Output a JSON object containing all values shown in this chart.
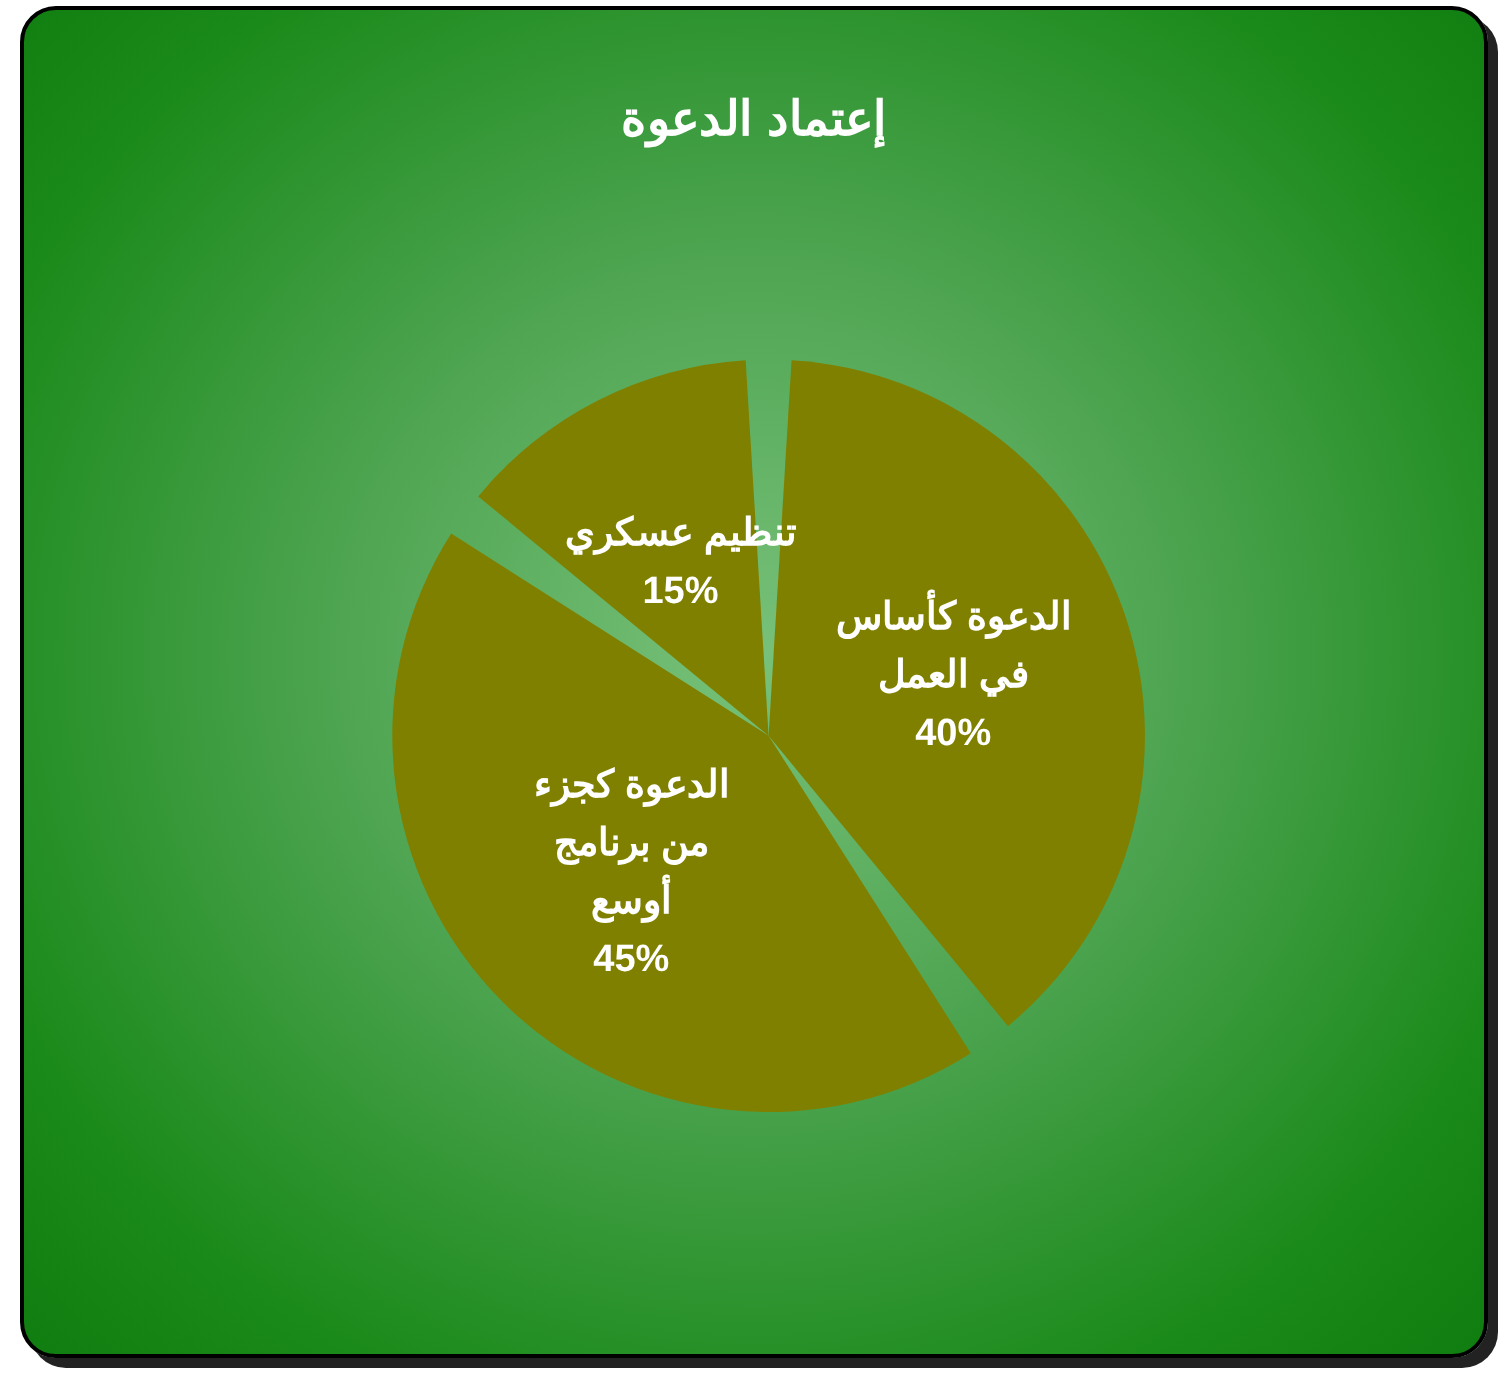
{
  "chart_data": {
    "type": "pie",
    "title": "إعتماد الدعوة",
    "categories": [
      "الدعوة كأساس في العمل",
      "الدعوة كجزء من برنامج أوسع",
      "تنظيم عسكري"
    ],
    "values": [
      40,
      45,
      15
    ],
    "value_labels": [
      "40%",
      "45%",
      "15%"
    ],
    "colors": [
      "#808000",
      "#808000",
      "#808000"
    ],
    "data_labels": true,
    "legend": false
  }
}
